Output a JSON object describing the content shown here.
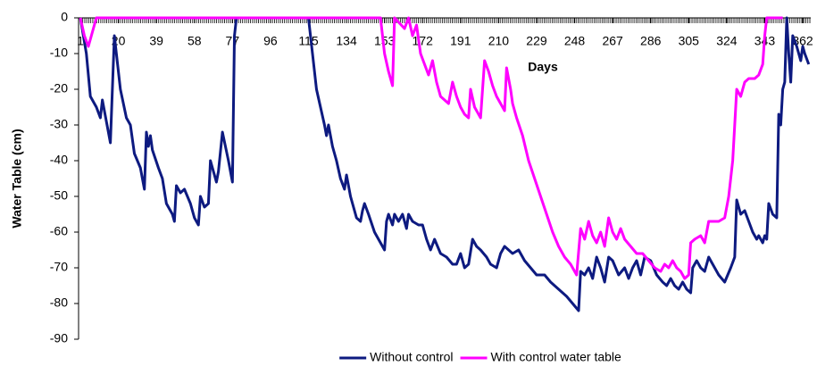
{
  "chart_data": {
    "type": "line",
    "x_label": "Days",
    "y_label": "Water Table (cm)",
    "xlim": [
      1,
      366
    ],
    "ylim": [
      -90,
      0
    ],
    "xticks": [
      1,
      20,
      39,
      58,
      77,
      96,
      115,
      134,
      153,
      172,
      191,
      210,
      229,
      248,
      267,
      286,
      305,
      324,
      343,
      362
    ],
    "yticks": [
      0,
      -10,
      -20,
      -30,
      -40,
      -50,
      -60,
      -70,
      -80,
      -90
    ],
    "legend": "bottom",
    "series": [
      {
        "name": "Without control",
        "color": "#0d1a80",
        "x": [
          1,
          4,
          6,
          9,
          11,
          12,
          14,
          16,
          18,
          19,
          21,
          24,
          26,
          28,
          31,
          33,
          34,
          35,
          36,
          37,
          40,
          42,
          44,
          47,
          48,
          49,
          51,
          53,
          56,
          58,
          60,
          61,
          63,
          65,
          66,
          68,
          69,
          70,
          72,
          75,
          77,
          78,
          79,
          115,
          117,
          119,
          121,
          123,
          124,
          125,
          127,
          129,
          131,
          133,
          134,
          136,
          139,
          141,
          142,
          143,
          145,
          148,
          150,
          153,
          154,
          155,
          157,
          158,
          160,
          162,
          164,
          165,
          167,
          170,
          172,
          174,
          176,
          178,
          181,
          184,
          187,
          189,
          191,
          193,
          195,
          197,
          199,
          201,
          204,
          206,
          209,
          211,
          213,
          215,
          217,
          220,
          223,
          226,
          229,
          233,
          236,
          240,
          244,
          247,
          250,
          251,
          253,
          255,
          257,
          259,
          261,
          263,
          265,
          267,
          270,
          273,
          275,
          277,
          279,
          281,
          283,
          286,
          289,
          292,
          294,
          296,
          298,
          300,
          302,
          304,
          306,
          307,
          309,
          311,
          313,
          315,
          317,
          320,
          323,
          326,
          328,
          329,
          331,
          333,
          335,
          337,
          339,
          340,
          342,
          343,
          344,
          345,
          347,
          349,
          350,
          351,
          352,
          353,
          354,
          355,
          356,
          357,
          359,
          361,
          362,
          363,
          365
        ],
        "values": [
          0,
          -10,
          -22,
          -25,
          -28,
          -23,
          -29,
          -35,
          -5,
          -10,
          -20,
          -28,
          -30,
          -38,
          -42,
          -48,
          -32,
          -36,
          -33,
          -37,
          -42,
          -45,
          -52,
          -55,
          -57,
          -47,
          -49,
          -48,
          -52,
          -56,
          -58,
          -50,
          -53,
          -52,
          -40,
          -44,
          -46,
          -43,
          -32,
          -40,
          -46,
          -5,
          0,
          0,
          -10,
          -20,
          -25,
          -30,
          -33,
          -30,
          -36,
          -40,
          -45,
          -48,
          -44,
          -50,
          -56,
          -57,
          -54,
          -52,
          -55,
          -60,
          -62,
          -65,
          -57,
          -55,
          -58,
          -55,
          -57,
          -55,
          -59,
          -55,
          -57,
          -58,
          -58,
          -62,
          -65,
          -62,
          -66,
          -67,
          -69,
          -69,
          -66,
          -70,
          -69,
          -62,
          -64,
          -65,
          -67,
          -69,
          -70,
          -66,
          -64,
          -65,
          -66,
          -65,
          -68,
          -70,
          -72,
          -72,
          -74,
          -76,
          -78,
          -80,
          -82,
          -71,
          -72,
          -70,
          -73,
          -67,
          -70,
          -74,
          -67,
          -68,
          -72,
          -70,
          -73,
          -70,
          -68,
          -72,
          -67,
          -68,
          -72,
          -74,
          -75,
          -73,
          -75,
          -76,
          -74,
          -76,
          -77,
          -70,
          -68,
          -70,
          -71,
          -67,
          -69,
          -72,
          -74,
          -70,
          -67,
          -51,
          -55,
          -54,
          -57,
          -60,
          -62,
          -61,
          -63,
          -61,
          -62,
          -52,
          -55,
          -56,
          -27,
          -30,
          -20,
          -18,
          0,
          -10,
          -18,
          -5,
          -8,
          -12,
          -8,
          -10,
          -13
        ]
      },
      {
        "name": "With control water table",
        "color": "#ff00ff",
        "x": [
          1,
          3,
          5,
          7,
          9,
          151,
          153,
          155,
          157,
          158,
          163,
          165,
          167,
          169,
          171,
          173,
          175,
          177,
          179,
          181,
          185,
          187,
          189,
          191,
          193,
          195,
          196,
          198,
          200,
          201,
          203,
          205,
          207,
          209,
          211,
          213,
          214,
          216,
          217,
          219,
          222,
          225,
          228,
          231,
          234,
          237,
          240,
          243,
          246,
          249,
          251,
          253,
          255,
          257,
          259,
          261,
          263,
          265,
          267,
          269,
          271,
          273,
          276,
          279,
          282,
          285,
          288,
          291,
          293,
          295,
          297,
          299,
          301,
          303,
          305,
          306,
          308,
          311,
          313,
          315,
          320,
          323,
          325,
          327,
          328,
          329,
          331,
          333,
          335,
          338,
          340,
          342,
          343,
          344,
          352
        ],
        "values": [
          0,
          -5,
          -8,
          -4,
          0,
          0,
          -10,
          -15,
          -19,
          0,
          -3,
          0,
          -5,
          -2,
          -10,
          -13,
          -16,
          -12,
          -18,
          -22,
          -24,
          -18,
          -22,
          -25,
          -27,
          -28,
          -20,
          -25,
          -27,
          -28,
          -12,
          -15,
          -19,
          -22,
          -24,
          -26,
          -14,
          -20,
          -24,
          -28,
          -33,
          -40,
          -45,
          -50,
          -55,
          -60,
          -64,
          -67,
          -69,
          -72,
          -59,
          -62,
          -57,
          -61,
          -63,
          -60,
          -64,
          -56,
          -60,
          -62,
          -59,
          -62,
          -64,
          -66,
          -66,
          -68,
          -70,
          -71,
          -69,
          -70,
          -68,
          -70,
          -71,
          -73,
          -72,
          -63,
          -62,
          -61,
          -63,
          -57,
          -57,
          -56,
          -50,
          -40,
          -30,
          -20,
          -22,
          -18,
          -17,
          -17,
          -16,
          -13,
          -5,
          0,
          0
        ]
      }
    ]
  }
}
